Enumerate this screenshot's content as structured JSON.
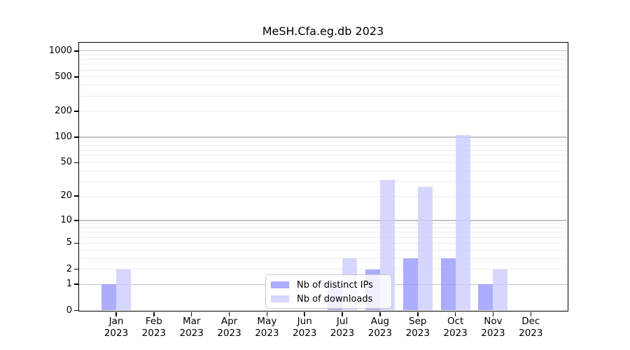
{
  "chart_data": {
    "type": "bar",
    "title": "MeSH.Cfa.eg.db 2023",
    "categories": [
      "Jan 2023",
      "Feb 2023",
      "Mar 2023",
      "Apr 2023",
      "May 2023",
      "Jun 2023",
      "Jul 2023",
      "Aug 2023",
      "Sep 2023",
      "Oct 2023",
      "Nov 2023",
      "Dec 2023"
    ],
    "series": [
      {
        "name": "Nb of distinct IPs",
        "color": "#9999FF",
        "values": [
          1,
          0,
          0,
          0,
          0,
          0,
          1,
          2,
          3,
          3,
          1,
          0
        ]
      },
      {
        "name": "Nb of downloads",
        "color": "#CCCCFF",
        "values": [
          2,
          0,
          0,
          0,
          0,
          0,
          3,
          31,
          26,
          106,
          2,
          0
        ]
      }
    ],
    "bar_opacity": 0.8,
    "y_axis": {
      "ticks": [
        0,
        1,
        2,
        5,
        10,
        20,
        50,
        100,
        200,
        500,
        1000
      ],
      "scale": "log1p",
      "range": [
        0,
        1240
      ]
    },
    "x_axis": {
      "label": ""
    },
    "grid": "horizontal-log-minor",
    "grid_major_values": [
      1,
      10,
      100,
      1000
    ],
    "grid_colors": {
      "major": "#c4c4c4",
      "minor": "#ececec"
    },
    "legend_position": "inside-bottom-center",
    "frame_color": "#000000",
    "background": "#ffffff"
  }
}
